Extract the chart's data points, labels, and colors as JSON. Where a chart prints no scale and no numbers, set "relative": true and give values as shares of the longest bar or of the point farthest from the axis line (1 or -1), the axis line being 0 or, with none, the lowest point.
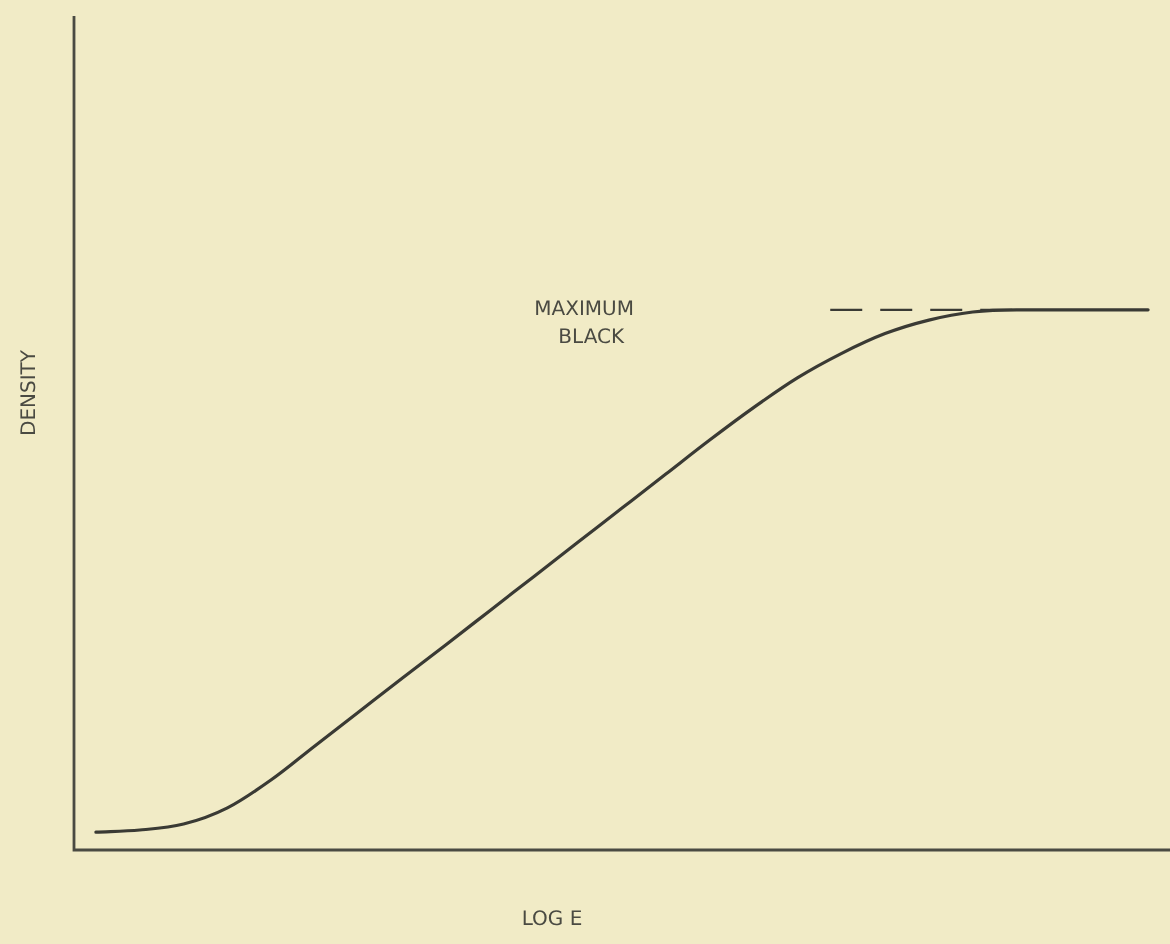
{
  "chart_data": {
    "type": "line",
    "relative": true,
    "xlabel": "LOG E",
    "ylabel": "DENSITY",
    "legend": false,
    "marker": "none",
    "line_style": "solid",
    "categories": [
      null,
      null,
      null,
      null,
      null,
      null,
      null,
      null,
      null,
      null,
      null,
      null,
      null,
      null,
      null,
      null,
      null,
      null,
      null,
      null,
      null,
      null,
      null,
      null,
      null
    ],
    "series": [
      {
        "color": "#3a3a34",
        "values": [
          0.033,
          0.037,
          0.048,
          0.078,
          0.13,
          0.193,
          0.256,
          0.319,
          0.381,
          0.444,
          0.507,
          0.57,
          0.633,
          0.696,
          0.759,
          0.819,
          0.874,
          0.919,
          0.956,
          0.981,
          0.996,
          1,
          1,
          1,
          1
        ]
      }
    ],
    "ref_lines": [
      {
        "axis": "y",
        "value": 1,
        "label": "MAXIMUM BLACK",
        "line_style": "dashed",
        "color": "#3a3a34"
      }
    ]
  }
}
